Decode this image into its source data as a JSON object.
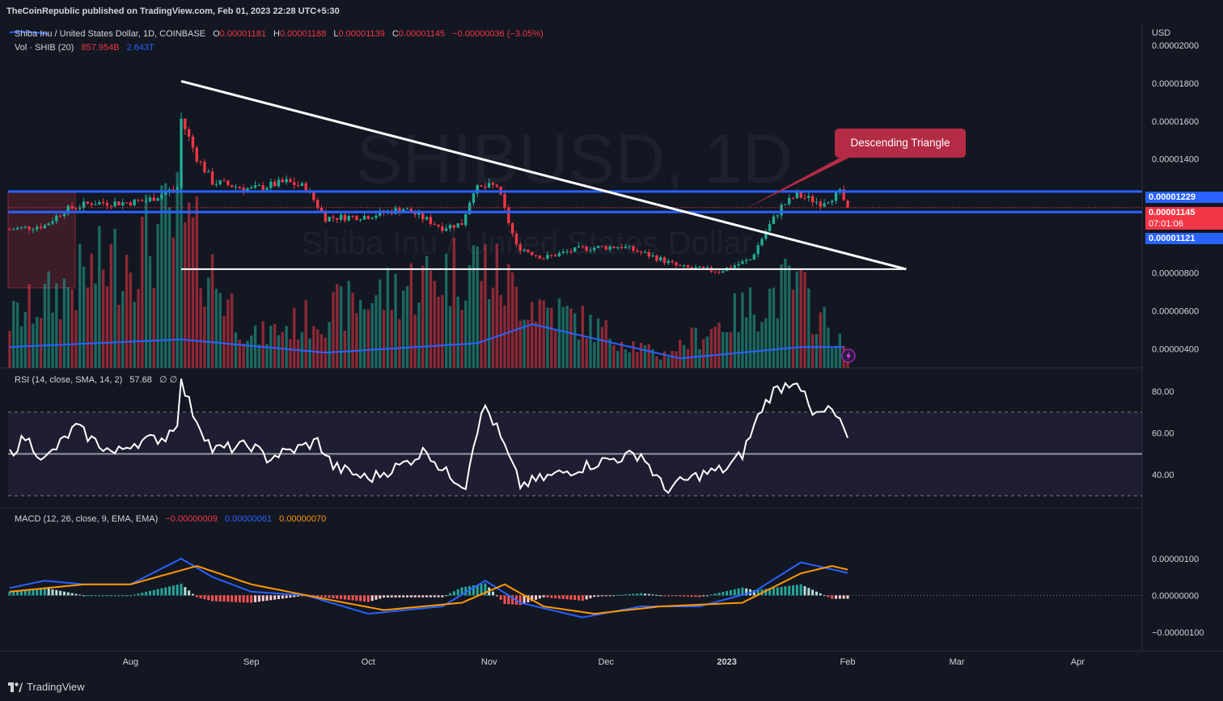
{
  "header": {
    "publisher": "TheCoinRepublic published on TradingView.com, Feb 01, 2023 22:28 UTC+5:30"
  },
  "legend": {
    "symbol": "Shiba Inu / United States Dollar, 1D, COINBASE",
    "o_label": "O",
    "o_value": "0.00001181",
    "h_label": "H",
    "h_value": "0.00001188",
    "l_label": "L",
    "l_value": "0.00001139",
    "c_label": "C",
    "c_value": "0.00001145",
    "change": "−0.00000036 (−3.05%)",
    "vol_label": "Vol · SHIB (20)",
    "vol_value": "857.954B",
    "vol_ma": "2.643T"
  },
  "watermark": {
    "title": "SHIBUSD, 1D",
    "subtitle": "Shiba Inu / United States Dollar"
  },
  "annotation": {
    "text": "Descending Triangle"
  },
  "price_axis": {
    "currency": "USD",
    "ticks": [
      "0.00002000",
      "0.00001800",
      "0.00001600",
      "0.00001400",
      "0.00000800",
      "0.00000600",
      "0.00000400"
    ],
    "tag_upper": "0.00001229",
    "tag_last": "0.00001145",
    "tag_countdown": "07:01:06",
    "tag_lower": "0.00001121"
  },
  "rsi": {
    "label": "RSI (14, close, SMA, 14, 2)",
    "value": "57.68",
    "extra": "∅ ∅",
    "ticks": [
      "80.00",
      "60.00",
      "40.00"
    ]
  },
  "macd": {
    "label": "MACD (12, 26, close, 9, EMA, EMA)",
    "hist": "−0.00000009",
    "macd_value": "0.00000061",
    "signal_value": "0.00000070",
    "ticks": [
      "0.00000100",
      "0.00000000",
      "−0.00000100"
    ]
  },
  "time_axis": {
    "labels": [
      "Aug",
      "Sep",
      "Oct",
      "Nov",
      "Dec",
      "2023",
      "Feb",
      "Mar",
      "Apr"
    ]
  },
  "brand": {
    "name": "TradingView"
  },
  "colors": {
    "up": "#22ab94",
    "down": "#f23645",
    "level": "#2962ff",
    "macd": "#2962ff",
    "signal": "#ff9800",
    "rsi_band": "#7e57c2",
    "callout": "#b32b44"
  },
  "chart_data": {
    "type": "candlestick",
    "symbol": "SHIBUSD",
    "interval": "1D",
    "x_range": [
      "2022-07-01",
      "2023-02-01"
    ],
    "y_range": [
      3e-06,
      2.11e-05
    ],
    "levels": {
      "resistance": 1.229e-05,
      "support": 1.121e-05,
      "base": 8.2e-06
    },
    "trendline": {
      "from": [
        "2022-08-14",
        1.81e-05
      ],
      "to": [
        "2023-02-16",
        8.2e-06
      ]
    },
    "ohlc_anchors": [
      [
        "2022-07-01",
        1.03e-05
      ],
      [
        "2022-07-10",
        1.05e-05
      ],
      [
        "2022-07-15",
        1.13e-05
      ],
      [
        "2022-07-22",
        1.17e-05
      ],
      [
        "2022-07-30",
        1.17e-05
      ],
      [
        "2022-08-05",
        1.18e-05
      ],
      [
        "2022-08-13",
        1.25e-05
      ],
      [
        "2022-08-14",
        1.61e-05
      ],
      [
        "2022-08-18",
        1.41e-05
      ],
      [
        "2022-08-22",
        1.28e-05
      ],
      [
        "2022-09-01",
        1.24e-05
      ],
      [
        "2022-09-10",
        1.28e-05
      ],
      [
        "2022-09-15",
        1.25e-05
      ],
      [
        "2022-09-20",
        1.09e-05
      ],
      [
        "2022-10-01",
        1.1e-05
      ],
      [
        "2022-10-10",
        1.14e-05
      ],
      [
        "2022-10-20",
        1.04e-05
      ],
      [
        "2022-10-25",
        1.06e-05
      ],
      [
        "2022-10-28",
        1.24e-05
      ],
      [
        "2022-11-03",
        1.26e-05
      ],
      [
        "2022-11-08",
        9.4e-06
      ],
      [
        "2022-11-15",
        8.8e-06
      ],
      [
        "2022-11-25",
        9.3e-06
      ],
      [
        "2022-12-05",
        9.4e-06
      ],
      [
        "2022-12-14",
        8.8e-06
      ],
      [
        "2022-12-20",
        8.3e-06
      ],
      [
        "2022-12-30",
        8.1e-06
      ],
      [
        "2023-01-07",
        8.7e-06
      ],
      [
        "2023-01-11",
        1.02e-05
      ],
      [
        "2023-01-15",
        1.15e-05
      ],
      [
        "2023-01-19",
        1.21e-05
      ],
      [
        "2023-01-25",
        1.17e-05
      ],
      [
        "2023-01-30",
        1.22e-05
      ],
      [
        "2023-02-01",
        1.145e-05
      ]
    ],
    "last": {
      "open": 1.181e-05,
      "high": 1.188e-05,
      "low": 1.139e-05,
      "close": 1.145e-05
    },
    "volume_anchors": [
      [
        "2022-07-01",
        2.8e-06
      ],
      [
        "2022-08-14",
        8.5e-06
      ],
      [
        "2022-09-01",
        1.7e-06
      ],
      [
        "2022-10-29",
        6.2e-06
      ],
      [
        "2022-11-09",
        4.2e-06
      ],
      [
        "2022-12-15",
        7e-07
      ],
      [
        "2023-01-18",
        4.9e-06
      ],
      [
        "2023-02-01",
        9e-07
      ]
    ],
    "volume_ma_anchors": [
      [
        "2022-07-01",
        1.1e-06
      ],
      [
        "2022-08-14",
        1.5e-06
      ],
      [
        "2022-09-20",
        8e-07
      ],
      [
        "2022-10-29",
        1.3e-06
      ],
      [
        "2022-11-12",
        2.3e-06
      ],
      [
        "2022-12-20",
        5e-07
      ],
      [
        "2023-01-20",
        1.1e-06
      ],
      [
        "2023-02-01",
        1.1e-06
      ]
    ],
    "rsi_range": [
      25,
      90
    ],
    "rsi_levels": {
      "upper": 70,
      "middle": 50,
      "lower": 30
    },
    "rsi_anchors": [
      [
        "2022-07-01",
        50
      ],
      [
        "2022-07-05",
        58
      ],
      [
        "2022-07-10",
        47
      ],
      [
        "2022-07-18",
        63
      ],
      [
        "2022-07-22",
        57
      ],
      [
        "2022-07-28",
        50
      ],
      [
        "2022-08-01",
        55
      ],
      [
        "2022-08-10",
        58
      ],
      [
        "2022-08-13",
        66
      ],
      [
        "2022-08-14",
        84
      ],
      [
        "2022-08-17",
        70
      ],
      [
        "2022-08-22",
        52
      ],
      [
        "2022-09-01",
        54
      ],
      [
        "2022-09-05",
        48
      ],
      [
        "2022-09-12",
        52
      ],
      [
        "2022-09-18",
        56
      ],
      [
        "2022-09-22",
        44
      ],
      [
        "2022-10-01",
        38
      ],
      [
        "2022-10-10",
        45
      ],
      [
        "2022-10-16",
        52
      ],
      [
        "2022-10-20",
        42
      ],
      [
        "2022-10-26",
        35
      ],
      [
        "2022-10-28",
        56
      ],
      [
        "2022-10-31",
        73
      ],
      [
        "2022-11-03",
        62
      ],
      [
        "2022-11-09",
        35
      ],
      [
        "2022-11-18",
        40
      ],
      [
        "2022-12-01",
        47
      ],
      [
        "2022-12-10",
        50
      ],
      [
        "2022-12-16",
        33
      ],
      [
        "2022-12-25",
        40
      ],
      [
        "2023-01-01",
        43
      ],
      [
        "2023-01-05",
        50
      ],
      [
        "2023-01-10",
        72
      ],
      [
        "2023-01-13",
        80
      ],
      [
        "2023-01-19",
        86
      ],
      [
        "2023-01-23",
        68
      ],
      [
        "2023-01-28",
        71
      ],
      [
        "2023-02-01",
        57.68
      ]
    ],
    "macd_range": [
      -1.4e-06,
      1.9e-06
    ],
    "macd_anchors": [
      [
        "2022-07-01",
        2e-07
      ],
      [
        "2022-07-10",
        4e-07
      ],
      [
        "2022-07-20",
        3e-07
      ],
      [
        "2022-08-01",
        3e-07
      ],
      [
        "2022-08-14",
        1e-06
      ],
      [
        "2022-08-22",
        5e-07
      ],
      [
        "2022-09-01",
        1e-07
      ],
      [
        "2022-09-15",
        0.0
      ],
      [
        "2022-10-01",
        -5e-07
      ],
      [
        "2022-10-20",
        -3e-07
      ],
      [
        "2022-10-31",
        4e-07
      ],
      [
        "2022-11-09",
        -2e-07
      ],
      [
        "2022-11-25",
        -6e-07
      ],
      [
        "2022-12-10",
        -3e-07
      ],
      [
        "2022-12-25",
        -3e-07
      ],
      [
        "2023-01-08",
        1e-07
      ],
      [
        "2023-01-20",
        9e-07
      ],
      [
        "2023-02-01",
        6.1e-07
      ]
    ],
    "signal_anchors": [
      [
        "2022-07-01",
        1e-07
      ],
      [
        "2022-07-20",
        3e-07
      ],
      [
        "2022-08-01",
        3e-07
      ],
      [
        "2022-08-18",
        8e-07
      ],
      [
        "2022-09-01",
        3e-07
      ],
      [
        "2022-09-20",
        -1e-07
      ],
      [
        "2022-10-05",
        -4e-07
      ],
      [
        "2022-10-25",
        -2e-07
      ],
      [
        "2022-11-05",
        3e-07
      ],
      [
        "2022-11-15",
        -3e-07
      ],
      [
        "2022-11-28",
        -5e-07
      ],
      [
        "2022-12-15",
        -3e-07
      ],
      [
        "2023-01-05",
        -2e-07
      ],
      [
        "2023-01-20",
        6e-07
      ],
      [
        "2023-01-28",
        8e-07
      ],
      [
        "2023-02-01",
        7e-07
      ]
    ]
  }
}
